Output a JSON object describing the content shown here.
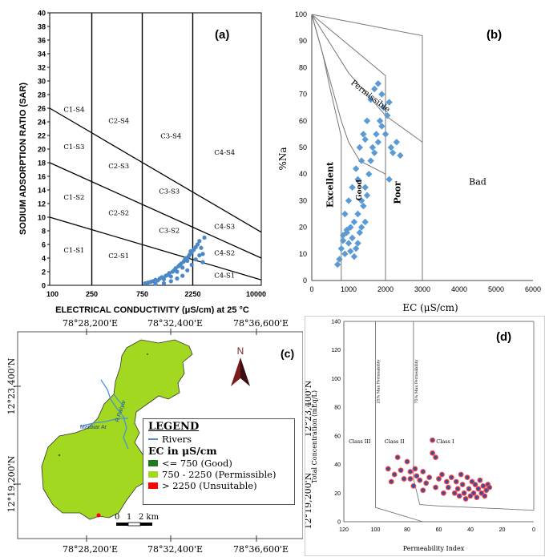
{
  "colors": {
    "scatter_blue": "#4a88c8",
    "diamond_blue": "#5b9bd5",
    "map_fill": "#a2d820",
    "river": "#4a90d9",
    "good": "#1f7a1f",
    "permissible": "#a2d820",
    "unsuitable": "#ff0000",
    "marker_edge": "#ff4444",
    "marker_fill": "#3b4fa0"
  },
  "chart_data": [
    {
      "panel": "(a)",
      "type": "scatter",
      "ylabel": "SODIUM ADSORPTION RATIO (SAR)",
      "xlabel": "ELECTRICAL CONDUCTIVITY (μS/cm) at 25 °C",
      "x_ticks": [
        "100",
        "250",
        "750",
        "2250",
        "10000"
      ],
      "y_ticks": [
        "0",
        "2",
        "4",
        "6",
        "8",
        "10",
        "12",
        "14",
        "16",
        "18",
        "20",
        "22",
        "24",
        "26",
        "28",
        "30",
        "32",
        "34",
        "36",
        "38",
        "40"
      ],
      "ylim": [
        0,
        40
      ],
      "class_labels": [
        "C1-S4",
        "C2-S4",
        "C1-S3",
        "C2-S3",
        "C3-S4",
        "C4-S4",
        "C1-S2",
        "C2-S2",
        "C3-S3",
        "C3-S2",
        "C4-S3",
        "C1-S1",
        "C2-S1",
        "C4-S2",
        "C4-S1"
      ],
      "points": [
        [
          800,
          0.3
        ],
        [
          850,
          0.4
        ],
        [
          900,
          0.5
        ],
        [
          950,
          0.6
        ],
        [
          1000,
          0.8
        ],
        [
          1050,
          0.7
        ],
        [
          1100,
          1.0
        ],
        [
          1150,
          1.2
        ],
        [
          1200,
          0.9
        ],
        [
          1250,
          1.4
        ],
        [
          1300,
          1.5
        ],
        [
          1350,
          1.8
        ],
        [
          1400,
          1.3
        ],
        [
          1450,
          2.0
        ],
        [
          1500,
          2.2
        ],
        [
          1550,
          2.5
        ],
        [
          1600,
          2.0
        ],
        [
          1650,
          2.8
        ],
        [
          1700,
          3.0
        ],
        [
          1750,
          3.2
        ],
        [
          1800,
          2.6
        ],
        [
          1850,
          3.5
        ],
        [
          1900,
          3.8
        ],
        [
          1950,
          4.0
        ],
        [
          2000,
          3.6
        ],
        [
          2050,
          4.2
        ],
        [
          2100,
          4.5
        ],
        [
          2150,
          5.0
        ],
        [
          2200,
          4.8
        ],
        [
          2300,
          5.2
        ],
        [
          2400,
          5.6
        ],
        [
          2500,
          6.0
        ],
        [
          2600,
          6.5
        ],
        [
          2700,
          5.5
        ],
        [
          2800,
          4.6
        ],
        [
          2900,
          7.0
        ],
        [
          1000,
          0.2
        ],
        [
          1200,
          0.3
        ],
        [
          1400,
          0.6
        ],
        [
          1600,
          1.0
        ],
        [
          1800,
          1.4
        ],
        [
          2000,
          2.2
        ],
        [
          2200,
          3.0
        ],
        [
          2400,
          3.8
        ],
        [
          2600,
          4.4
        ],
        [
          2800,
          3.4
        ]
      ]
    },
    {
      "panel": "(b)",
      "type": "scatter",
      "ylabel": "%Na",
      "xlabel": "EC (μS/cm)",
      "xlim": [
        0,
        6000
      ],
      "ylim": [
        0,
        100
      ],
      "x_ticks": [
        "0",
        "1000",
        "2000",
        "3000",
        "4000",
        "5000",
        "6000"
      ],
      "y_ticks": [
        "0",
        "10",
        "20",
        "30",
        "40",
        "50",
        "60",
        "70",
        "80",
        "90",
        "100"
      ],
      "zone_labels": [
        "Permissible",
        "Excellent",
        "Good",
        "Poor",
        "Bad"
      ],
      "points": [
        [
          700,
          6
        ],
        [
          750,
          8
        ],
        [
          800,
          12
        ],
        [
          850,
          15
        ],
        [
          900,
          10
        ],
        [
          950,
          18
        ],
        [
          1000,
          14
        ],
        [
          1050,
          20
        ],
        [
          1100,
          16
        ],
        [
          1150,
          22
        ],
        [
          1200,
          12
        ],
        [
          1250,
          25
        ],
        [
          1300,
          18
        ],
        [
          1350,
          30
        ],
        [
          1400,
          28
        ],
        [
          1450,
          35
        ],
        [
          1500,
          32
        ],
        [
          1550,
          40
        ],
        [
          1600,
          45
        ],
        [
          1650,
          50
        ],
        [
          1700,
          48
        ],
        [
          1750,
          55
        ],
        [
          1800,
          52
        ],
        [
          1850,
          60
        ],
        [
          1900,
          58
        ],
        [
          1950,
          65
        ],
        [
          2000,
          55
        ],
        [
          2050,
          62
        ],
        [
          2100,
          67
        ],
        [
          2150,
          50
        ],
        [
          2200,
          48
        ],
        [
          2300,
          52
        ],
        [
          2400,
          47
        ],
        [
          1000,
          30
        ],
        [
          1100,
          35
        ],
        [
          1200,
          42
        ],
        [
          1300,
          50
        ],
        [
          1400,
          55
        ],
        [
          1500,
          60
        ],
        [
          1600,
          68
        ],
        [
          1700,
          72
        ],
        [
          1800,
          74
        ],
        [
          1900,
          70
        ],
        [
          1250,
          38
        ],
        [
          1350,
          45
        ],
        [
          1450,
          53
        ],
        [
          2100,
          38
        ],
        [
          850,
          17
        ],
        [
          950,
          19
        ],
        [
          1050,
          11
        ],
        [
          1150,
          9
        ],
        [
          1250,
          14
        ],
        [
          1350,
          20
        ],
        [
          1450,
          22
        ],
        [
          900,
          25
        ]
      ]
    },
    {
      "panel": "(c)",
      "type": "map",
      "top_ticks": [
        "78°28,200'E",
        "78°32,400'E",
        "78°36,600'E"
      ],
      "bottom_ticks": [
        "78°28,200'E",
        "78°32,400'E",
        "78°36,600'E"
      ],
      "left_ticks": [
        "12°23,400'N",
        "12°19,200'N"
      ],
      "north": "N",
      "scale_ticks": [
        "0",
        "1",
        "2 km"
      ],
      "river_labels": [
        "Mailaiar Ar",
        "R Paliyar"
      ],
      "legend": {
        "title": "LEGEND",
        "rivers": "Rivers",
        "subtitle": "EC in μS/cm",
        "items": [
          "<= 750 (Good)",
          "750 - 2250 (Permissible)",
          "> 2250 (Unsuitable)"
        ]
      }
    },
    {
      "panel": "(d)",
      "type": "scatter",
      "ylabel": "Total Concentration (mEq/L)",
      "xlabel": "Permeability Index",
      "xlim": [
        120,
        0
      ],
      "ylim": [
        0,
        140
      ],
      "x_ticks": [
        "120",
        "100",
        "80",
        "60",
        "40",
        "20",
        "0"
      ],
      "y_ticks": [
        "0",
        "20",
        "40",
        "60",
        "80",
        "100",
        "120",
        "140"
      ],
      "zone_labels": [
        "25% Max Permeability",
        "75% Max Permeability",
        "Class III",
        "Class II",
        "Class I"
      ],
      "points": [
        [
          92,
          37
        ],
        [
          88,
          33
        ],
        [
          86,
          45
        ],
        [
          84,
          36
        ],
        [
          82,
          30
        ],
        [
          80,
          42
        ],
        [
          78,
          35
        ],
        [
          76,
          25
        ],
        [
          75,
          37
        ],
        [
          74,
          32
        ],
        [
          72,
          29
        ],
        [
          70,
          35
        ],
        [
          68,
          27
        ],
        [
          66,
          31
        ],
        [
          64,
          57
        ],
        [
          64,
          48
        ],
        [
          62,
          45
        ],
        [
          62,
          24
        ],
        [
          60,
          30
        ],
        [
          58,
          33
        ],
        [
          57,
          20
        ],
        [
          55,
          28
        ],
        [
          54,
          24
        ],
        [
          52,
          31
        ],
        [
          50,
          20
        ],
        [
          49,
          28
        ],
        [
          48,
          23
        ],
        [
          47,
          18
        ],
        [
          46,
          33
        ],
        [
          45,
          26
        ],
        [
          44,
          20
        ],
        [
          43,
          16
        ],
        [
          42,
          31
        ],
        [
          41,
          23
        ],
        [
          40,
          18
        ],
        [
          39,
          28
        ],
        [
          38,
          20
        ],
        [
          37,
          26
        ],
        [
          36,
          17
        ],
        [
          35,
          23
        ],
        [
          34,
          29
        ],
        [
          33,
          20
        ],
        [
          32,
          25
        ],
        [
          31,
          18
        ],
        [
          30,
          22
        ],
        [
          29,
          26
        ],
        [
          28,
          24
        ],
        [
          90,
          28
        ],
        [
          78,
          30
        ],
        [
          70,
          22
        ]
      ]
    }
  ]
}
